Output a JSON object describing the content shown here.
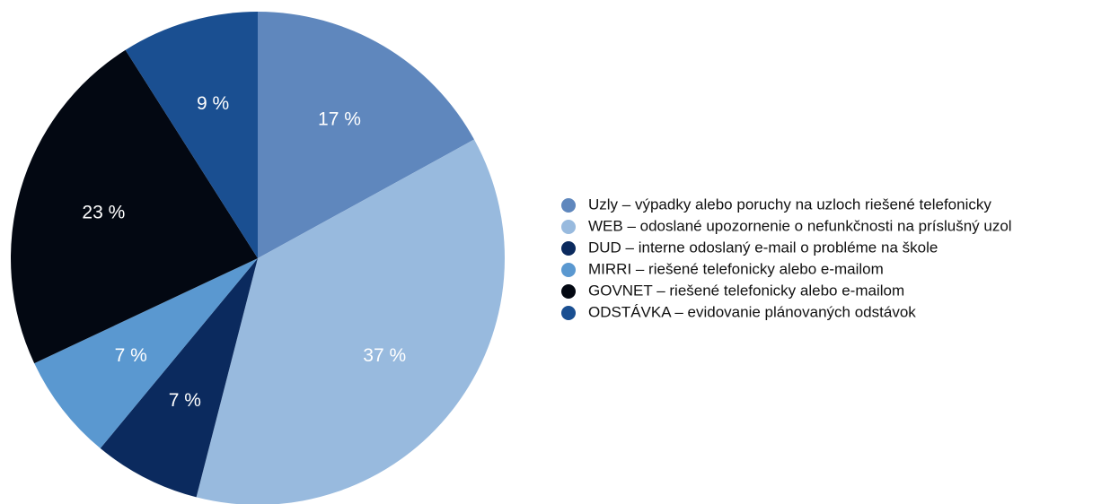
{
  "chart_data": {
    "type": "pie",
    "categories": [
      "Uzly – výpadky alebo poruchy na uzloch riešené telefonicky",
      "WEB – odoslané upozornenie o nefunkčnosti na príslušný uzol",
      "DUD – interne odoslaný e-mail o probléme na škole",
      "MIRRI – riešené telefonicky alebo e-mailom",
      "GOVNET – riešené telefonicky alebo e-mailom",
      "ODSTÁVKA – evidovanie plánovaných odstávok"
    ],
    "values": [
      17,
      37,
      7,
      7,
      23,
      9
    ],
    "value_labels": [
      "17 %",
      "37 %",
      "7 %",
      "7 %",
      "23 %",
      "9 %"
    ],
    "colors": [
      "#5f87bd",
      "#98bade",
      "#0b2a5e",
      "#5a98d0",
      "#030812",
      "#1a4f91"
    ],
    "legend": "right"
  }
}
